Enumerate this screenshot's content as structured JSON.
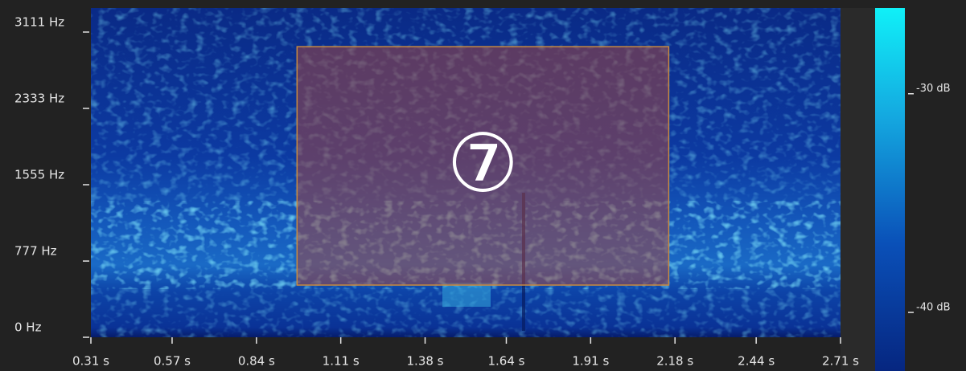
{
  "chart_data": {
    "type": "spectrogram",
    "xlim": [
      0.31,
      2.71
    ],
    "xticks": [
      {
        "value": 0.31,
        "label": "0.31 s"
      },
      {
        "value": 0.57,
        "label": "0.57 s"
      },
      {
        "value": 0.84,
        "label": "0.84 s"
      },
      {
        "value": 1.11,
        "label": "1.11 s"
      },
      {
        "value": 1.38,
        "label": "1.38 s"
      },
      {
        "value": 1.64,
        "label": "1.64 s"
      },
      {
        "value": 1.91,
        "label": "1.91 s"
      },
      {
        "value": 2.18,
        "label": "2.18 s"
      },
      {
        "value": 2.44,
        "label": "2.44 s"
      },
      {
        "value": 2.71,
        "label": "2.71 s"
      }
    ],
    "ylim": [
      0,
      3356
    ],
    "yticks": [
      {
        "value": 0,
        "label": "0 Hz"
      },
      {
        "value": 777,
        "label": "777 Hz"
      },
      {
        "value": 1555,
        "label": "1555 Hz"
      },
      {
        "value": 2333,
        "label": "2333 Hz"
      },
      {
        "value": 3111,
        "label": "3111 Hz"
      }
    ],
    "colorbar": {
      "lim": [
        -42.9,
        -26.3
      ],
      "ticks": [
        {
          "value": -40,
          "label": "-40 dB"
        },
        {
          "value": -30,
          "label": "-30 dB"
        }
      ]
    },
    "selection": {
      "xlim": [
        0.97,
        2.16
      ],
      "ylim": [
        532,
        2962
      ],
      "label": "⑦",
      "color": "#a0453f"
    }
  }
}
